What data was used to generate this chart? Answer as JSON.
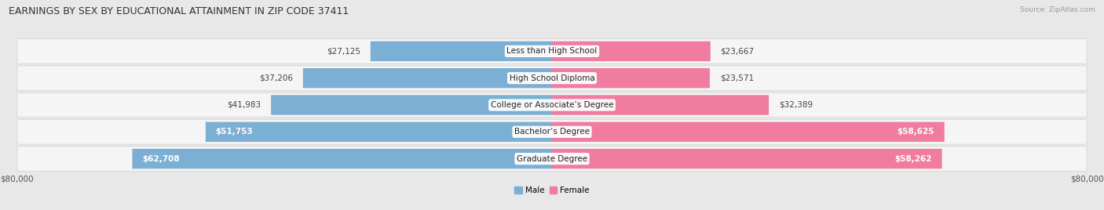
{
  "title": "EARNINGS BY SEX BY EDUCATIONAL ATTAINMENT IN ZIP CODE 37411",
  "source": "Source: ZipAtlas.com",
  "categories": [
    "Less than High School",
    "High School Diploma",
    "College or Associate’s Degree",
    "Bachelor’s Degree",
    "Graduate Degree"
  ],
  "male_values": [
    27125,
    37206,
    41983,
    51753,
    62708
  ],
  "female_values": [
    23667,
    23571,
    32389,
    58625,
    58262
  ],
  "male_color": "#7bafd4",
  "female_color": "#f07ca0",
  "max_val": 80000,
  "bg_color": "#e8e8e8",
  "row_bg_color": "#f2f2f2",
  "title_fontsize": 9,
  "label_fontsize": 7.5,
  "tick_fontsize": 7.5,
  "value_inside_threshold": 48000
}
